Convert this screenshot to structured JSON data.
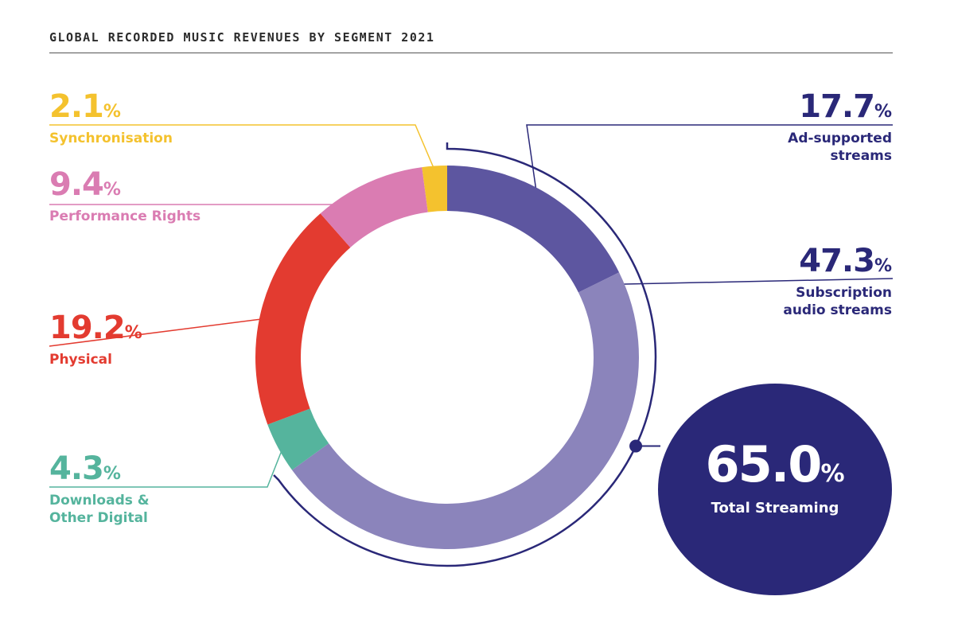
{
  "header": {
    "title": "GLOBAL RECORDED MUSIC REVENUES BY SEGMENT 2021"
  },
  "chart_data": {
    "type": "pie",
    "donut": true,
    "title": "GLOBAL RECORDED MUSIC REVENUES BY SEGMENT 2021",
    "unit": "%",
    "slices": [
      {
        "key": "ad",
        "label": "Ad-supported\nstreams",
        "value": 17.7,
        "value_text": "17.7",
        "color": "#5d56a0"
      },
      {
        "key": "sub",
        "label": "Subscription\naudio streams",
        "value": 47.3,
        "value_text": "47.3",
        "color": "#8b84bb"
      },
      {
        "key": "dl",
        "label": "Downloads &\nOther Digital",
        "value": 4.3,
        "value_text": "4.3",
        "color": "#55b49d"
      },
      {
        "key": "phys",
        "label": "Physical",
        "value": 19.2,
        "value_text": "19.2",
        "color": "#e33b30"
      },
      {
        "key": "perf",
        "label": "Performance Rights",
        "value": 9.4,
        "value_text": "9.4",
        "color": "#da7cb2"
      },
      {
        "key": "sync",
        "label": "Synchronisation",
        "value": 2.1,
        "value_text": "2.1",
        "color": "#f4c22e"
      }
    ],
    "annotation": {
      "label": "Total Streaming",
      "value": 65.0,
      "value_text": "65.0",
      "color": "#2a2878"
    }
  }
}
